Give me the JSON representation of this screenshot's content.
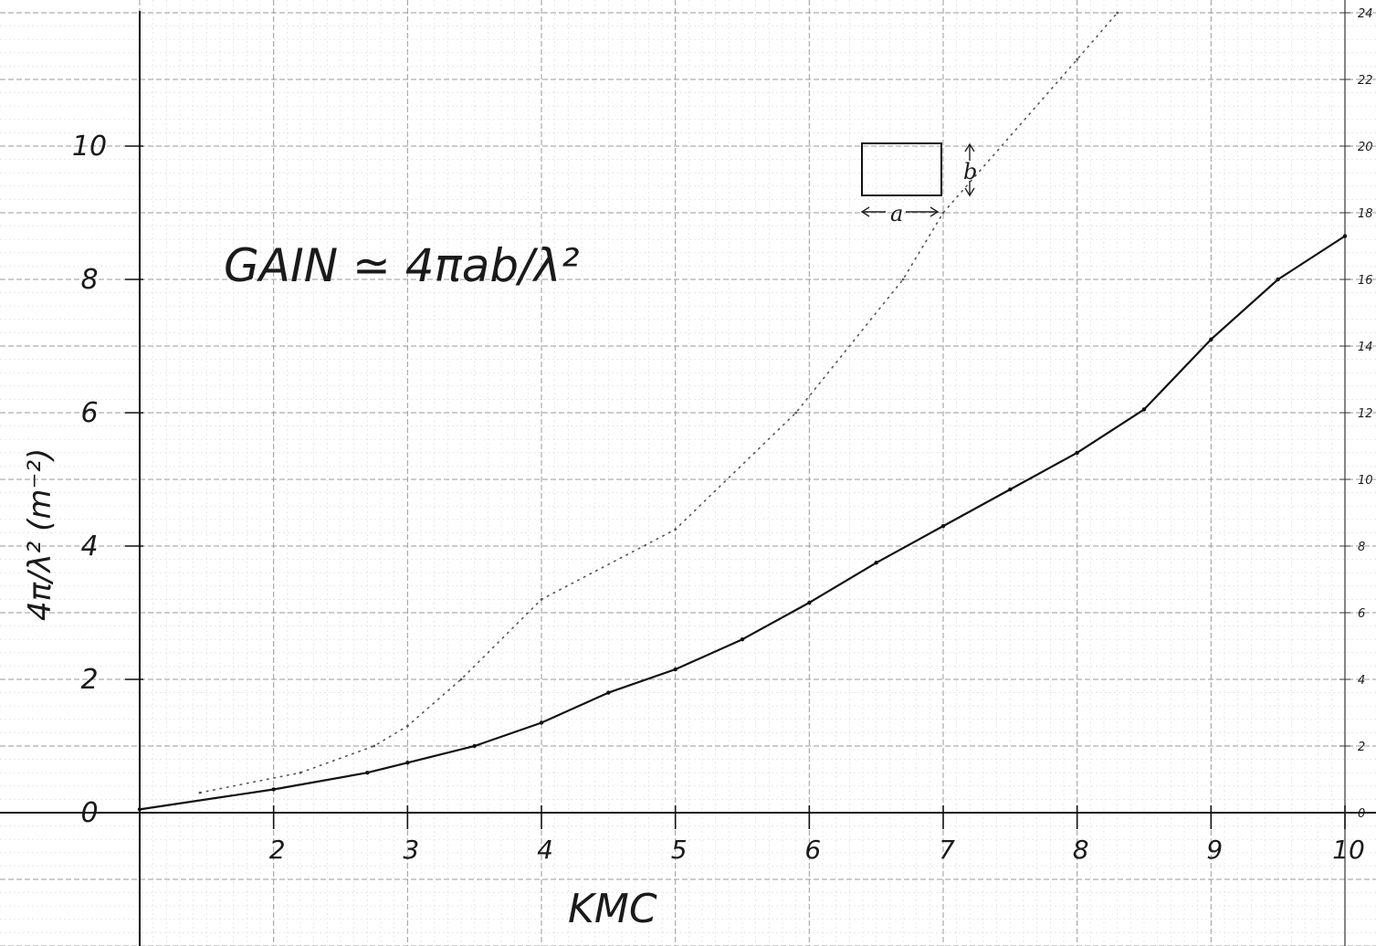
{
  "chart_data": {
    "type": "line",
    "xlabel": "KMC",
    "ylabel": "4π/λ² (m⁻²)",
    "annotation_formula": "GAIN ≃ 4πab/λ²",
    "inset_labels": {
      "width": "a",
      "height": "b"
    },
    "xlim": [
      1,
      10
    ],
    "ylim": [
      0,
      12
    ],
    "y2lim": [
      0,
      24
    ],
    "x_ticks": [
      "2",
      "3",
      "4",
      "5",
      "6",
      "7",
      "8",
      "9",
      "10"
    ],
    "y_ticks": [
      "0",
      "2",
      "4",
      "6",
      "8",
      "10"
    ],
    "y2_ticks": [
      "0",
      "2",
      "4",
      "6",
      "8",
      "10",
      "12",
      "14",
      "16",
      "18",
      "20",
      "22",
      "24"
    ],
    "grid": true,
    "series": [
      {
        "axis": "left",
        "style": "solid",
        "x": [
          1,
          2,
          2.7,
          3,
          3.5,
          4,
          4.5,
          5,
          5.5,
          6,
          6.5,
          7,
          7.5,
          8,
          8.5,
          9,
          9.5,
          10
        ],
        "y": [
          0.05,
          0.35,
          0.6,
          0.75,
          1.0,
          1.35,
          1.8,
          2.15,
          2.6,
          3.15,
          3.75,
          4.3,
          4.85,
          5.4,
          6.05,
          7.1,
          8.0,
          8.65
        ]
      },
      {
        "axis": "right",
        "style": "dotted",
        "x": [
          1.45,
          2.2,
          2.75,
          3.0,
          3.4,
          4.0,
          5.0,
          5.9,
          6.7,
          7.0,
          8.0,
          8.3
        ],
        "y": [
          0.6,
          1.2,
          2.0,
          2.6,
          4.0,
          6.4,
          8.5,
          12.0,
          16.0,
          18.0,
          22.6,
          24.0
        ]
      }
    ]
  }
}
